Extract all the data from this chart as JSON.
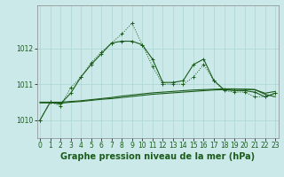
{
  "xlabel": "Graphe pression niveau de la mer (hPa)",
  "background_color": "#cce9e9",
  "grid_color": "#aad4d4",
  "line_color": "#1a5c1a",
  "x": [
    0,
    1,
    2,
    3,
    4,
    5,
    6,
    7,
    8,
    9,
    10,
    11,
    12,
    13,
    14,
    15,
    16,
    17,
    18,
    19,
    20,
    21,
    22,
    23
  ],
  "line1_solid": [
    1010.0,
    1010.5,
    1010.45,
    1010.75,
    1011.2,
    1011.55,
    1011.85,
    1012.15,
    1012.2,
    1012.2,
    1012.1,
    1011.7,
    1011.05,
    1011.05,
    1011.1,
    1011.55,
    1011.7,
    1011.1,
    1010.85,
    1010.82,
    1010.82,
    1010.78,
    1010.65,
    1010.75
  ],
  "line2_dotted": [
    1010.0,
    1010.5,
    1010.4,
    1010.9,
    1011.2,
    1011.6,
    1011.9,
    1012.15,
    1012.4,
    1012.7,
    1012.1,
    1011.5,
    1011.0,
    1011.0,
    1011.0,
    1011.2,
    1011.55,
    1011.1,
    1010.82,
    1010.78,
    1010.78,
    1010.65,
    1010.65,
    1010.75
  ],
  "line3_flat1": [
    1010.5,
    1010.5,
    1010.5,
    1010.52,
    1010.54,
    1010.57,
    1010.6,
    1010.63,
    1010.67,
    1010.7,
    1010.73,
    1010.76,
    1010.78,
    1010.8,
    1010.82,
    1010.84,
    1010.85,
    1010.86,
    1010.87,
    1010.87,
    1010.86,
    1010.85,
    1010.72,
    1010.65
  ],
  "line4_flat2": [
    1010.48,
    1010.48,
    1010.47,
    1010.5,
    1010.52,
    1010.55,
    1010.58,
    1010.6,
    1010.63,
    1010.66,
    1010.69,
    1010.72,
    1010.74,
    1010.76,
    1010.78,
    1010.8,
    1010.82,
    1010.84,
    1010.85,
    1010.86,
    1010.86,
    1010.85,
    1010.75,
    1010.8
  ],
  "ylim": [
    1009.5,
    1013.2
  ],
  "yticks": [
    1010,
    1011,
    1012
  ],
  "xtick_labels": [
    "0",
    "1",
    "2",
    "3",
    "4",
    "5",
    "6",
    "7",
    "8",
    "9",
    "10",
    "11",
    "12",
    "13",
    "14",
    "15",
    "16",
    "17",
    "18",
    "19",
    "20",
    "21",
    "22",
    "23"
  ],
  "tick_fontsize": 5.5,
  "xlabel_fontsize": 7
}
